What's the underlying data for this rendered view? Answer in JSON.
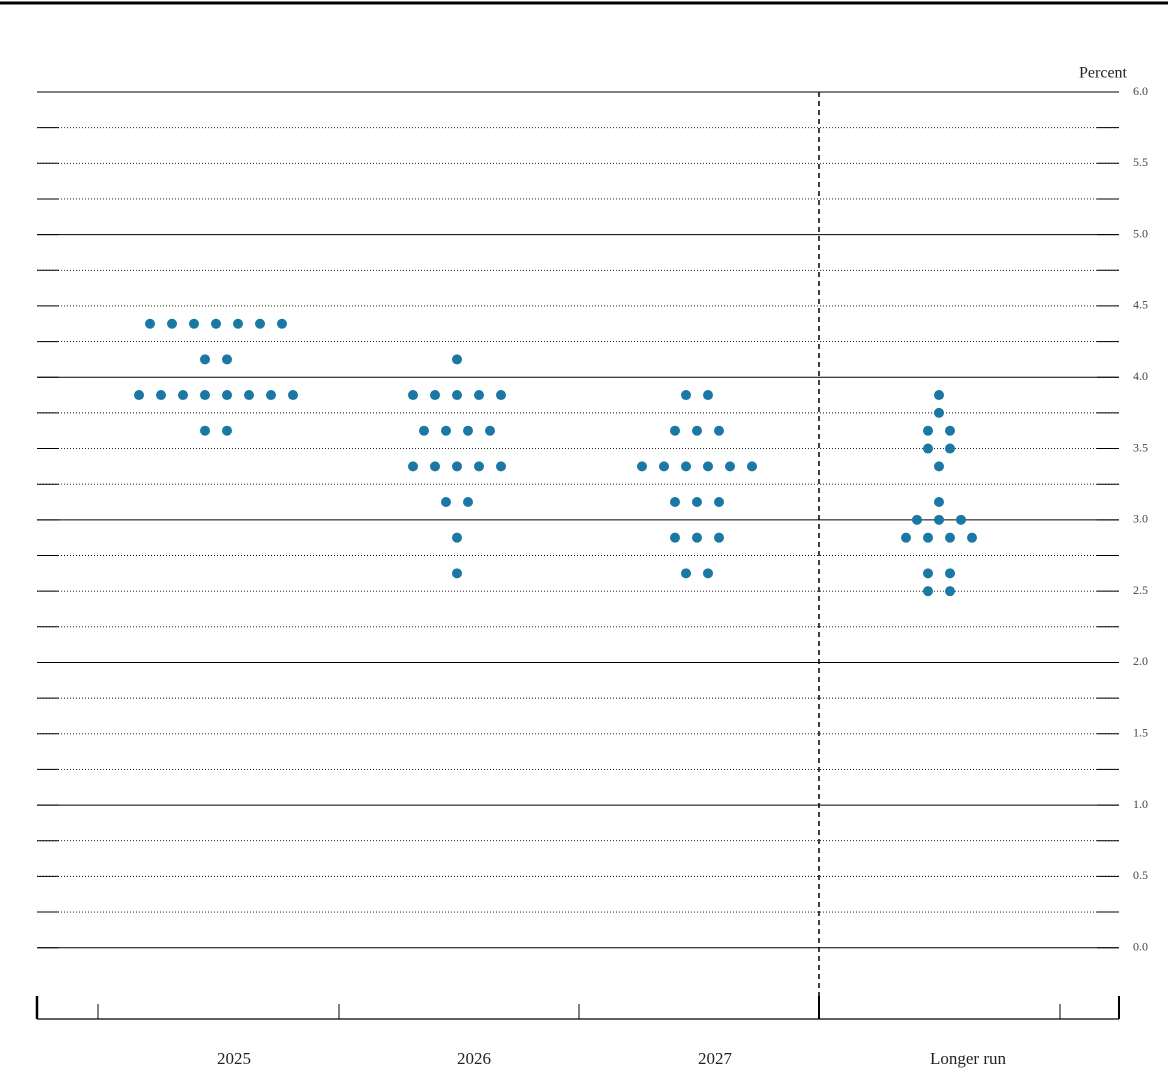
{
  "chart_data": {
    "type": "dotplot",
    "y_label": "Percent",
    "categories": [
      "2025",
      "2026",
      "2027",
      "Longer run"
    ],
    "values": [
      [
        4.375,
        4.375,
        4.375,
        4.375,
        4.375,
        4.375,
        4.375,
        4.125,
        4.125,
        3.875,
        3.875,
        3.875,
        3.875,
        3.875,
        3.875,
        3.875,
        3.875,
        3.625,
        3.625
      ],
      [
        4.125,
        3.875,
        3.875,
        3.875,
        3.875,
        3.875,
        3.625,
        3.625,
        3.625,
        3.625,
        3.375,
        3.375,
        3.375,
        3.375,
        3.375,
        3.125,
        3.125,
        2.875,
        2.625
      ],
      [
        3.875,
        3.875,
        3.625,
        3.625,
        3.625,
        3.375,
        3.375,
        3.375,
        3.375,
        3.375,
        3.375,
        3.125,
        3.125,
        3.125,
        2.875,
        2.875,
        2.875,
        2.625,
        2.625
      ],
      [
        3.875,
        3.75,
        3.625,
        3.625,
        3.5,
        3.5,
        3.375,
        3.125,
        3.0,
        3.0,
        3.0,
        2.875,
        2.875,
        2.875,
        2.875,
        2.625,
        2.625,
        2.5,
        2.5
      ]
    ],
    "color": "#1a78a5",
    "ylim": [
      -0.5,
      6.0
    ],
    "yticks": [
      {
        "value": 0,
        "label": "0.0"
      },
      0.5,
      {
        "value": 1,
        "label": "1.0"
      },
      1.5,
      {
        "value": 2,
        "label": "2.0"
      },
      2.5,
      {
        "value": 3,
        "label": "3.0"
      },
      3.5,
      {
        "value": 4,
        "label": "4.0"
      },
      4.5,
      {
        "value": 5,
        "label": "5.0"
      },
      5.5,
      {
        "value": 6,
        "label": "6.0"
      }
    ],
    "minor_yticks": [
      0.25,
      0.75,
      1.25,
      1.75,
      2.25,
      2.75,
      3.25,
      3.75,
      4.25,
      4.75,
      5.25,
      5.75
    ],
    "grid": true
  }
}
